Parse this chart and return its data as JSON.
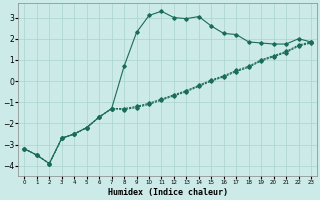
{
  "xlabel": "Humidex (Indice chaleur)",
  "background_color": "#cceae8",
  "grid_color": "#aad4d0",
  "line_color": "#1a6b5a",
  "xlim": [
    -0.5,
    23.5
  ],
  "ylim": [
    -4.5,
    3.7
  ],
  "yticks": [
    -4,
    -3,
    -2,
    -1,
    0,
    1,
    2,
    3
  ],
  "xticks": [
    0,
    1,
    2,
    3,
    4,
    5,
    6,
    7,
    8,
    9,
    10,
    11,
    12,
    13,
    14,
    15,
    16,
    17,
    18,
    19,
    20,
    21,
    22,
    23
  ],
  "curve1_x": [
    0,
    1,
    2,
    3,
    4,
    5,
    6,
    7,
    8,
    9,
    10,
    11,
    12,
    13,
    14,
    15,
    16,
    17,
    18,
    19,
    20,
    21,
    22,
    23
  ],
  "curve1_y": [
    -3.2,
    -3.5,
    -3.9,
    -2.7,
    -2.5,
    -2.2,
    -1.7,
    -1.3,
    0.7,
    2.3,
    3.1,
    3.3,
    3.0,
    2.95,
    3.05,
    2.6,
    2.25,
    2.2,
    1.85,
    1.8,
    1.75,
    1.75,
    2.0,
    1.85
  ],
  "curve2_x": [
    0,
    1,
    2,
    3,
    4,
    5,
    6,
    7,
    8,
    9,
    10,
    11,
    12,
    13,
    14,
    15,
    16,
    17,
    18,
    19,
    20,
    21,
    22,
    23
  ],
  "curve2_y": [
    -3.2,
    -3.5,
    -3.9,
    -2.7,
    -2.5,
    -2.2,
    -1.7,
    -1.3,
    -1.3,
    -1.2,
    -1.05,
    -0.85,
    -0.65,
    -0.45,
    -0.2,
    0.05,
    0.25,
    0.5,
    0.7,
    1.0,
    1.2,
    1.4,
    1.7,
    1.85
  ],
  "curve3_x": [
    0,
    1,
    2,
    3,
    4,
    5,
    6,
    7,
    8,
    9,
    10,
    11,
    12,
    13,
    14,
    15,
    16,
    17,
    18,
    19,
    20,
    21,
    22,
    23
  ],
  "curve3_y": [
    -3.2,
    -3.5,
    -3.9,
    -2.7,
    -2.5,
    -2.2,
    -1.7,
    -1.3,
    -1.35,
    -1.25,
    -1.1,
    -0.9,
    -0.7,
    -0.5,
    -0.25,
    0.0,
    0.2,
    0.45,
    0.65,
    0.95,
    1.15,
    1.35,
    1.65,
    1.8
  ]
}
